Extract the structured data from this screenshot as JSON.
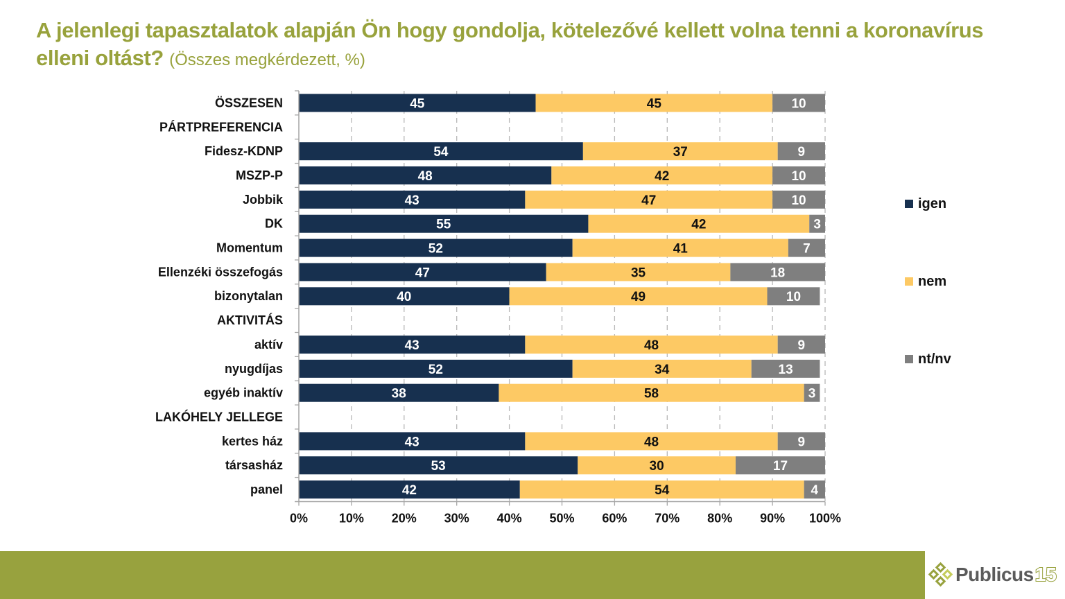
{
  "header": {
    "title_main": "A jelenlegi tapasztalatok alapján Ön hogy gondolja, kötelezővé kellett volna tenni a koronavírus elleni oltást?",
    "title_sub": "(Összes megkérdezett, %)"
  },
  "footer": {
    "logo_text": "Publicus",
    "logo_number": "15"
  },
  "chart_data": {
    "type": "bar",
    "orientation": "horizontal",
    "stacked": "percent",
    "title": "A jelenlegi tapasztalatok alapján Ön hogy gondolja, kötelezővé kellett volna tenni a koronavírus elleni oltást? (Összes megkérdezett, %)",
    "xlabel": "",
    "ylabel": "",
    "xlim": [
      0,
      100
    ],
    "x_ticks": [
      "0%",
      "10%",
      "20%",
      "30%",
      "40%",
      "50%",
      "60%",
      "70%",
      "80%",
      "90%",
      "100%"
    ],
    "grid": "vertical dashed",
    "legend_position": "right",
    "categories": [
      "ÖSSZESEN",
      "PÁRTPREFERENCIA",
      "Fidesz-KDNP",
      "MSZP-P",
      "Jobbik",
      "DK",
      "Momentum",
      "Ellenzéki összefogás",
      "bizonytalan",
      "AKTIVITÁS",
      "aktív",
      "nyugdíjas",
      "egyéb inaktív",
      "LAKÓHELY JELLEGE",
      "kertes ház",
      "társasház",
      "panel"
    ],
    "series": [
      {
        "name": "igen",
        "color": "#17304f",
        "values": [
          45,
          null,
          54,
          48,
          43,
          55,
          52,
          47,
          40,
          null,
          43,
          52,
          38,
          null,
          43,
          53,
          42
        ]
      },
      {
        "name": "nem",
        "color": "#fdc964",
        "values": [
          45,
          null,
          37,
          42,
          47,
          42,
          41,
          35,
          49,
          null,
          48,
          34,
          58,
          null,
          48,
          30,
          54
        ]
      },
      {
        "name": "nt/nv",
        "color": "#7f7f7f",
        "values": [
          10,
          null,
          9,
          10,
          10,
          3,
          7,
          18,
          10,
          null,
          9,
          13,
          3,
          null,
          9,
          17,
          4
        ]
      }
    ]
  }
}
